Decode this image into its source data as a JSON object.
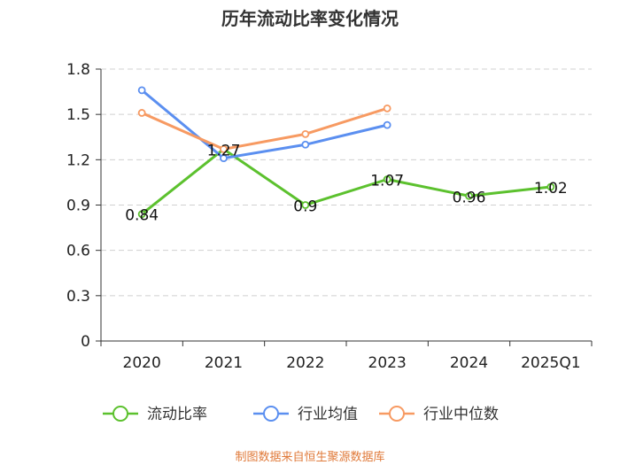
{
  "chart_data": {
    "type": "line",
    "title": "历年流动比率变化情况",
    "categories": [
      "2020",
      "2021",
      "2022",
      "2023",
      "2024",
      "2025Q1"
    ],
    "ylim": [
      0,
      1.8
    ],
    "yticks": [
      0,
      0.3,
      0.6,
      0.9,
      1.2,
      1.5,
      1.8
    ],
    "ytick_labels": [
      "0",
      "0.3",
      "0.6",
      "0.9",
      "1.2",
      "1.5",
      "1.8"
    ],
    "grid": true,
    "legend_position": "bottom",
    "series": [
      {
        "name": "流动比率",
        "color": "#5cc12e",
        "values": [
          0.84,
          1.27,
          0.9,
          1.07,
          0.96,
          1.02
        ],
        "data_labels": [
          "0.84",
          "1.27",
          "0.9",
          "1.07",
          "0.96",
          "1.02"
        ]
      },
      {
        "name": "行业均值",
        "color": "#5b8ff0",
        "values": [
          1.66,
          1.21,
          1.3,
          1.43,
          null,
          null
        ]
      },
      {
        "name": "行业中位数",
        "color": "#f79a62",
        "values": [
          1.51,
          1.27,
          1.37,
          1.54,
          null,
          null
        ]
      }
    ],
    "source": "制图数据来自恒生聚源数据库"
  }
}
